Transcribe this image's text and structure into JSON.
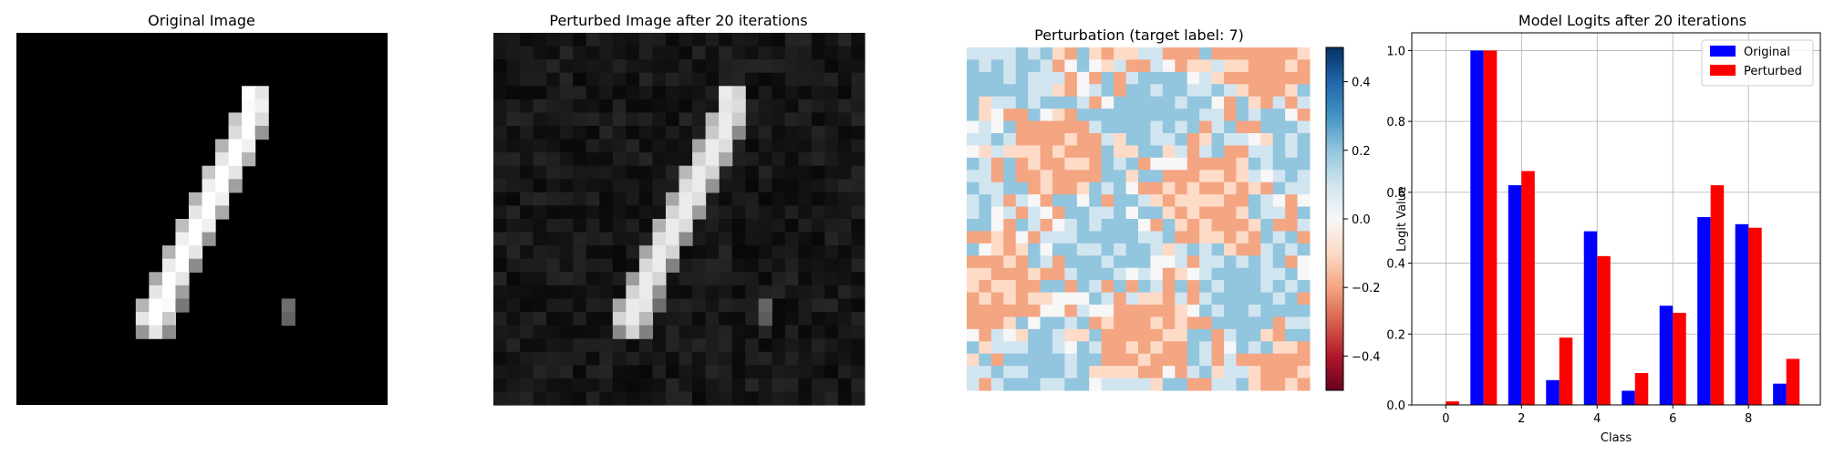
{
  "panels": {
    "original": {
      "title": "Original Image"
    },
    "perturbed": {
      "title": "Perturbed Image after 20 iterations"
    },
    "perturbation": {
      "title": "Perturbation (target label: 7)",
      "colorbar": {
        "colormap": "RdBu",
        "range": [
          -0.5,
          0.5
        ],
        "ticks": [
          0.4,
          0.2,
          0.0,
          -0.2,
          -0.4
        ],
        "tick_labels": [
          "0.4",
          "0.2",
          "0.0",
          "−0.2",
          "−0.4"
        ]
      }
    }
  },
  "chart_data": {
    "type": "bar",
    "title": "Model Logits after 20 iterations",
    "xlabel": "Class",
    "ylabel": "Logit Value",
    "categories": [
      0,
      1,
      2,
      3,
      4,
      5,
      6,
      7,
      8,
      9
    ],
    "xticks": [
      0,
      2,
      4,
      6,
      8
    ],
    "xtick_labels": [
      "0",
      "2",
      "4",
      "6",
      "8"
    ],
    "yticks": [
      0.0,
      0.2,
      0.4,
      0.6,
      0.8,
      1.0
    ],
    "ytick_labels": [
      "0.0",
      "0.2",
      "0.4",
      "0.6",
      "0.8",
      "1.0"
    ],
    "xlim": [
      -0.9,
      9.9
    ],
    "ylim": [
      0,
      1.05
    ],
    "grid": true,
    "legend_position": "top-right",
    "series": [
      {
        "name": "Original",
        "color": "#0000ff",
        "values": [
          0.0,
          1.0,
          0.62,
          0.07,
          0.49,
          0.04,
          0.28,
          0.53,
          0.51,
          0.06
        ]
      },
      {
        "name": "Perturbed",
        "color": "#ff0000",
        "values": [
          0.01,
          1.0,
          0.66,
          0.19,
          0.42,
          0.09,
          0.26,
          0.62,
          0.5,
          0.13
        ]
      }
    ]
  }
}
